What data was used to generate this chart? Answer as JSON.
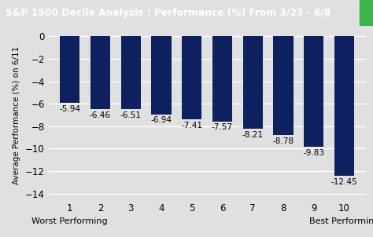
{
  "title": "S&P 1500 Decile Analysis : Performance (%) From 3/23 - 6/8",
  "ylabel": "Average Performance (%) on 6/11",
  "categories": [
    1,
    2,
    3,
    4,
    5,
    6,
    7,
    8,
    9,
    10
  ],
  "values": [
    -5.94,
    -6.46,
    -6.51,
    -6.94,
    -7.41,
    -7.57,
    -8.21,
    -8.78,
    -9.83,
    -12.45
  ],
  "bar_color": "#0d2060",
  "title_bg_color": "#1b3a6b",
  "title_text_color": "#ffffff",
  "title_accent_color": "#3ab54a",
  "xlabel_left": "Worst Performing",
  "xlabel_right": "Best Performing",
  "ylim": [
    -14.5,
    0.5
  ],
  "yticks": [
    0,
    -2,
    -4,
    -6,
    -8,
    -10,
    -12,
    -14
  ],
  "background_color": "#e0e0e0",
  "grid_color": "#ffffff",
  "value_fontsize": 7.5,
  "tick_fontsize": 8.5,
  "ylabel_fontsize": 7.5
}
